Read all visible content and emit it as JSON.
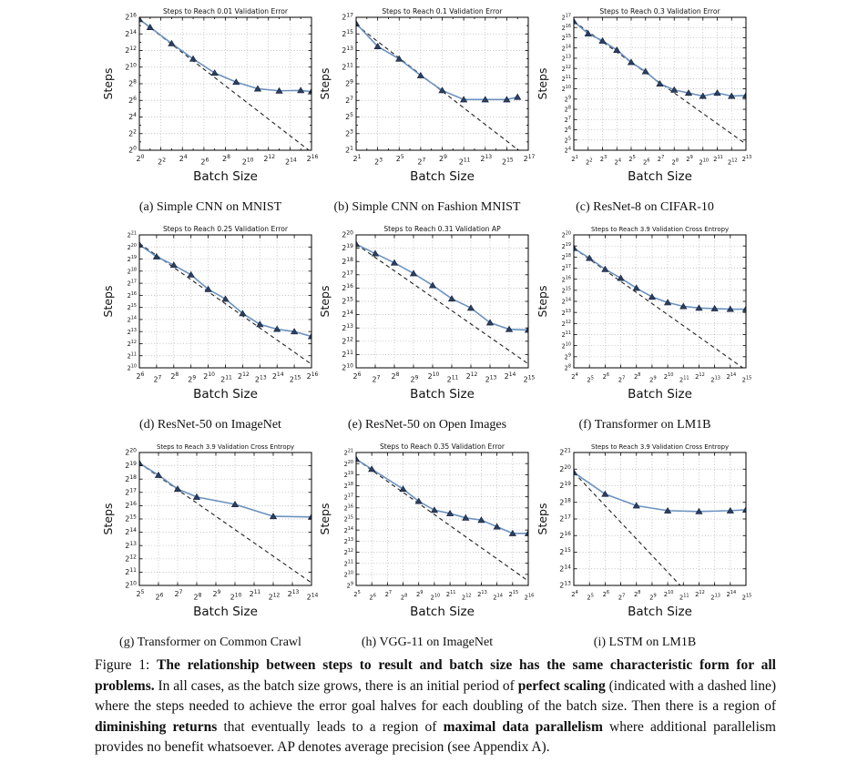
{
  "colors": {
    "data_line": "#6b92bf",
    "marker_fill": "#2b3f60",
    "marker_edge": "#16233c",
    "dashed_line": "#222222",
    "grid": "#9a9a9a",
    "axis": "#000000",
    "text": "#111111"
  },
  "figure": {
    "caption_segments": [
      {
        "text": "Figure 1: ",
        "bold": false
      },
      {
        "text": "The relationship between steps to result and batch size has the same characteristic form for all problems.",
        "bold": true
      },
      {
        "text": " In all cases, as the batch size grows, there is an initial period of ",
        "bold": false
      },
      {
        "text": "perfect scaling",
        "bold": true
      },
      {
        "text": " (indicated with a dashed line) where the steps needed to achieve the error goal halves for each doubling of the batch size. Then there is a region of ",
        "bold": false
      },
      {
        "text": "diminishing returns",
        "bold": true
      },
      {
        "text": " that eventually leads to a region of ",
        "bold": false
      },
      {
        "text": "maximal data parallelism",
        "bold": true
      },
      {
        "text": " where additional parallelism provides no benefit whatsoever. AP denotes average precision (see Appendix A).",
        "bold": false
      }
    ]
  },
  "chart_data": [
    {
      "id": "a",
      "type": "line",
      "title": "Steps to Reach 0.01 Validation Error",
      "caption": "(a) Simple CNN on MNIST",
      "xlabel": "Batch Size",
      "ylabel": "Steps",
      "x_axis": "log2 batch size exponents",
      "y_axis": "log2 steps exponents",
      "x_min": 0,
      "x_max": 16,
      "x_tick_step": 2,
      "y_min": 0,
      "y_max": 16,
      "y_tick_step": 2,
      "points": [
        [
          0,
          15.75
        ],
        [
          1,
          14.8
        ],
        [
          3,
          12.85
        ],
        [
          5,
          11.0
        ],
        [
          7,
          9.3
        ],
        [
          9,
          8.2
        ],
        [
          11,
          7.4
        ],
        [
          13,
          7.15
        ],
        [
          15,
          7.2
        ],
        [
          16,
          7.05
        ]
      ],
      "dash_start": [
        0,
        15.75
      ],
      "dash_slope": -1
    },
    {
      "id": "b",
      "type": "line",
      "title": "Steps to Reach 0.1 Validation Error",
      "caption": "(b) Simple CNN on Fashion MNIST",
      "xlabel": "Batch Size",
      "ylabel": "Steps",
      "x_axis": "log2 batch size exponents",
      "y_axis": "log2 steps exponents",
      "x_min": 1,
      "x_max": 17,
      "x_tick_step": 2,
      "y_min": 1,
      "y_max": 17,
      "y_tick_step": 2,
      "points": [
        [
          1,
          16.25
        ],
        [
          3,
          13.5
        ],
        [
          5,
          12.0
        ],
        [
          7,
          10.0
        ],
        [
          9,
          8.2
        ],
        [
          11,
          7.1
        ],
        [
          13,
          7.1
        ],
        [
          15,
          7.1
        ],
        [
          16,
          7.4
        ]
      ],
      "dash_start": [
        1,
        16.1
      ],
      "dash_slope": -1
    },
    {
      "id": "c",
      "type": "line",
      "title": "Steps to Reach 0.3 Validation Error",
      "caption": "(c) ResNet-8 on CIFAR-10",
      "xlabel": "Batch Size",
      "ylabel": "Steps",
      "x_axis": "log2 batch size exponents",
      "y_axis": "log2 steps exponents",
      "x_min": 1,
      "x_max": 13,
      "x_tick_step": 1,
      "y_min": 4,
      "y_max": 17,
      "y_tick_step": 1,
      "points": [
        [
          1,
          16.6
        ],
        [
          2,
          15.4
        ],
        [
          3,
          14.7
        ],
        [
          4,
          13.8
        ],
        [
          5,
          12.6
        ],
        [
          6,
          11.7
        ],
        [
          7,
          10.5
        ],
        [
          8,
          9.9
        ],
        [
          9,
          9.6
        ],
        [
          10,
          9.3
        ],
        [
          11,
          9.6
        ],
        [
          12,
          9.3
        ],
        [
          13,
          9.35
        ]
      ],
      "dash_start": [
        1,
        16.6
      ],
      "dash_slope": -1
    },
    {
      "id": "d",
      "type": "line",
      "title": "Steps to Reach 0.25 Validation Error",
      "caption": "(d) ResNet-50 on ImageNet",
      "xlabel": "Batch Size",
      "ylabel": "Steps",
      "x_axis": "log2 batch size exponents",
      "y_axis": "log2 steps exponents",
      "x_min": 6,
      "x_max": 16,
      "x_tick_step": 1,
      "y_min": 10,
      "y_max": 21,
      "y_tick_step": 1,
      "points": [
        [
          6,
          20.2
        ],
        [
          7,
          19.2
        ],
        [
          8,
          18.5
        ],
        [
          9,
          17.7
        ],
        [
          10,
          16.5
        ],
        [
          11,
          15.7
        ],
        [
          12,
          14.5
        ],
        [
          13,
          13.6
        ],
        [
          14,
          13.2
        ],
        [
          15,
          13.0
        ],
        [
          16,
          12.6
        ]
      ],
      "dash_start": [
        6,
        20.3
      ],
      "dash_slope": -1
    },
    {
      "id": "e",
      "type": "line",
      "title": "Steps to Reach 0.31 Validation AP",
      "caption": "(e) ResNet-50 on Open Images",
      "xlabel": "Batch Size",
      "ylabel": "Steps",
      "x_axis": "log2 batch size exponents",
      "y_axis": "log2 steps exponents",
      "x_min": 6,
      "x_max": 15,
      "x_tick_step": 1,
      "y_min": 10,
      "y_max": 20,
      "y_tick_step": 1,
      "points": [
        [
          6,
          19.3
        ],
        [
          7,
          18.6
        ],
        [
          8,
          17.9
        ],
        [
          9,
          17.1
        ],
        [
          10,
          16.2
        ],
        [
          11,
          15.2
        ],
        [
          12,
          14.5
        ],
        [
          13,
          13.4
        ],
        [
          14,
          12.9
        ],
        [
          15,
          12.85
        ]
      ],
      "dash_start": [
        6,
        19.3
      ],
      "dash_slope": -1
    },
    {
      "id": "f",
      "type": "line",
      "title": "Steps to Reach 3.9 Validation Cross Entropy",
      "caption": "(f) Transformer on LM1B",
      "xlabel": "Batch Size",
      "ylabel": "Steps",
      "x_axis": "log2 batch size exponents",
      "y_axis": "log2 steps exponents",
      "x_min": 4,
      "x_max": 15,
      "x_tick_step": 1,
      "y_min": 8,
      "y_max": 20,
      "y_tick_step": 1,
      "points": [
        [
          4,
          18.8
        ],
        [
          5,
          17.9
        ],
        [
          6,
          16.9
        ],
        [
          7,
          16.1
        ],
        [
          8,
          15.2
        ],
        [
          9,
          14.4
        ],
        [
          10,
          13.9
        ],
        [
          11,
          13.55
        ],
        [
          12,
          13.4
        ],
        [
          13,
          13.35
        ],
        [
          14,
          13.3
        ],
        [
          15,
          13.3
        ]
      ],
      "dash_start": [
        4,
        18.8
      ],
      "dash_slope": -1
    },
    {
      "id": "g",
      "type": "line",
      "title": "Steps to Reach 3.9 Validation Cross Entropy",
      "caption": "(g) Transformer on Common Crawl",
      "xlabel": "Batch Size",
      "ylabel": "Steps",
      "x_axis": "log2 batch size exponents",
      "y_axis": "log2 steps exponents",
      "x_min": 5,
      "x_max": 14,
      "x_tick_step": 1,
      "y_min": 10,
      "y_max": 20,
      "y_tick_step": 1,
      "points": [
        [
          5,
          19.2
        ],
        [
          6,
          18.3
        ],
        [
          7,
          17.25
        ],
        [
          8,
          16.65
        ],
        [
          10,
          16.1
        ],
        [
          12,
          15.2
        ],
        [
          14,
          15.15
        ]
      ],
      "dash_start": [
        5,
        19.2
      ],
      "dash_slope": -1
    },
    {
      "id": "h",
      "type": "line",
      "title": "Steps to Reach 0.35 Validation Error",
      "caption": "(h) VGG-11 on ImageNet",
      "xlabel": "Batch Size",
      "ylabel": "Steps",
      "x_axis": "log2 batch size exponents",
      "y_axis": "log2 steps exponents",
      "x_min": 5,
      "x_max": 16,
      "x_tick_step": 1,
      "y_min": 9,
      "y_max": 21,
      "y_tick_step": 1,
      "points": [
        [
          5,
          20.4
        ],
        [
          6,
          19.5
        ],
        [
          8,
          17.7
        ],
        [
          9,
          16.6
        ],
        [
          10,
          15.8
        ],
        [
          11,
          15.5
        ],
        [
          12,
          15.1
        ],
        [
          13,
          14.9
        ],
        [
          14,
          14.3
        ],
        [
          15,
          13.7
        ],
        [
          16,
          13.7
        ]
      ],
      "dash_start": [
        5,
        20.4
      ],
      "dash_slope": -1
    },
    {
      "id": "i",
      "type": "line",
      "title": "Steps to Reach 3.9 Validation Cross Entropy",
      "caption": "(i) LSTM on LM1B",
      "xlabel": "Batch Size",
      "ylabel": "Steps",
      "x_axis": "log2 batch size exponents",
      "y_axis": "log2 steps exponents",
      "x_min": 4,
      "x_max": 15,
      "x_tick_step": 1,
      "y_min": 13,
      "y_max": 21,
      "y_tick_step": 1,
      "points": [
        [
          4,
          19.8
        ],
        [
          6,
          18.5
        ],
        [
          8,
          17.8
        ],
        [
          10,
          17.5
        ],
        [
          12,
          17.45
        ],
        [
          14,
          17.5
        ],
        [
          15,
          17.55
        ]
      ],
      "dash_start": [
        4,
        19.8
      ],
      "dash_slope": -1
    }
  ]
}
